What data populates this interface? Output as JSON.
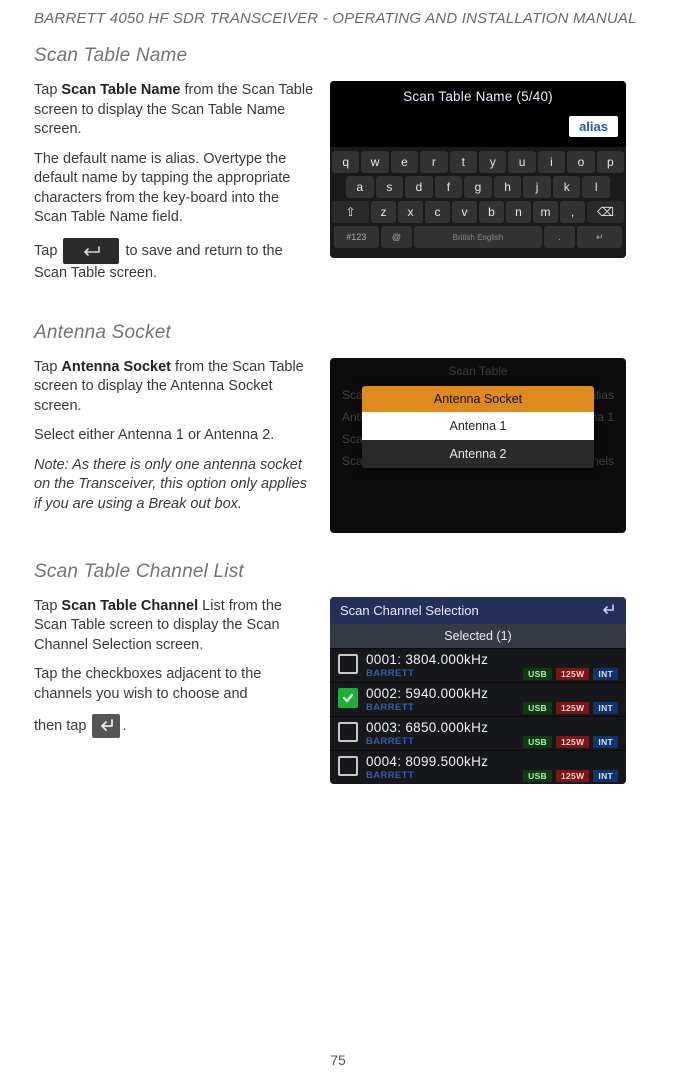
{
  "doc_title": "BARRETT 4050 HF SDR TRANSCEIVER - OPERATING AND INSTALLATION MANUAL",
  "page_number": "75",
  "sections": {
    "scan_table_name": {
      "heading": "Scan Table Name",
      "p1_pre": "Tap ",
      "p1_bold": "Scan Table Name",
      "p1_post": " from the Scan Table screen to display the Scan Table Name screen.",
      "p2": "The default name is alias. Overtype the default name by tapping the appropriate characters from the key-board into the Scan Table Name field.",
      "p3_pre": "Tap ",
      "p3_post": " to save and return to the Scan Table screen."
    },
    "antenna_socket": {
      "heading": "Antenna Socket",
      "p1_pre": "Tap ",
      "p1_bold": "Antenna Socket",
      "p1_post": " from the Scan Table screen to display the Antenna Socket screen.",
      "p2": "Select either Antenna 1 or Antenna 2.",
      "note": "Note: As there is only one antenna socket on the Transceiver, this option only applies if you are using a Break out box."
    },
    "channel_list": {
      "heading": "Scan Table Channel List",
      "p1_pre": "Tap ",
      "p1_bold": "Scan Table Channel",
      "p1_post": " List from the Scan Table screen to display the Scan Channel Selection screen.",
      "p2": "Tap the checkboxes adjacent to the channels you wish to choose and",
      "p3_pre": "then tap ",
      "p3_post": "."
    }
  },
  "shot1": {
    "title": "Scan Table Name (5/40)",
    "input_value": "alias",
    "rows": {
      "r1": [
        "q",
        "w",
        "e",
        "r",
        "t",
        "y",
        "u",
        "i",
        "o",
        "p"
      ],
      "r2": [
        "a",
        "s",
        "d",
        "f",
        "g",
        "h",
        "j",
        "k",
        "l"
      ],
      "r3": [
        "⇧",
        "z",
        "x",
        "c",
        "v",
        "b",
        "n",
        "m",
        ",",
        "⌫"
      ]
    },
    "bottom": {
      "left": "#123",
      "at": "@",
      "space": "British English",
      "dot": ".",
      "enter": "↵"
    }
  },
  "shot2": {
    "bg_title": "Scan Table",
    "bg_rows": [
      {
        "l": "Scan",
        "r": "alias"
      },
      {
        "l": "Ante",
        "r": "enna 1"
      },
      {
        "l": "Scan T",
        "r": ""
      },
      {
        "l": "Scan",
        "r": "annels"
      }
    ],
    "modal_title": "Antenna Socket",
    "opt1": "Antenna 1",
    "opt2": "Antenna 2"
  },
  "shot3": {
    "title": "Scan Channel Selection",
    "subtitle": "Selected (1)",
    "tags": {
      "usb": "USB",
      "pwr": "125W",
      "int": "INT"
    },
    "source": "BARRETT",
    "rows": [
      {
        "checked": false,
        "freq": "0001: 3804.000kHz"
      },
      {
        "checked": true,
        "freq": "0002: 5940.000kHz"
      },
      {
        "checked": false,
        "freq": "0003: 6850.000kHz"
      },
      {
        "checked": false,
        "freq": "0004: 8099.500kHz"
      }
    ]
  }
}
